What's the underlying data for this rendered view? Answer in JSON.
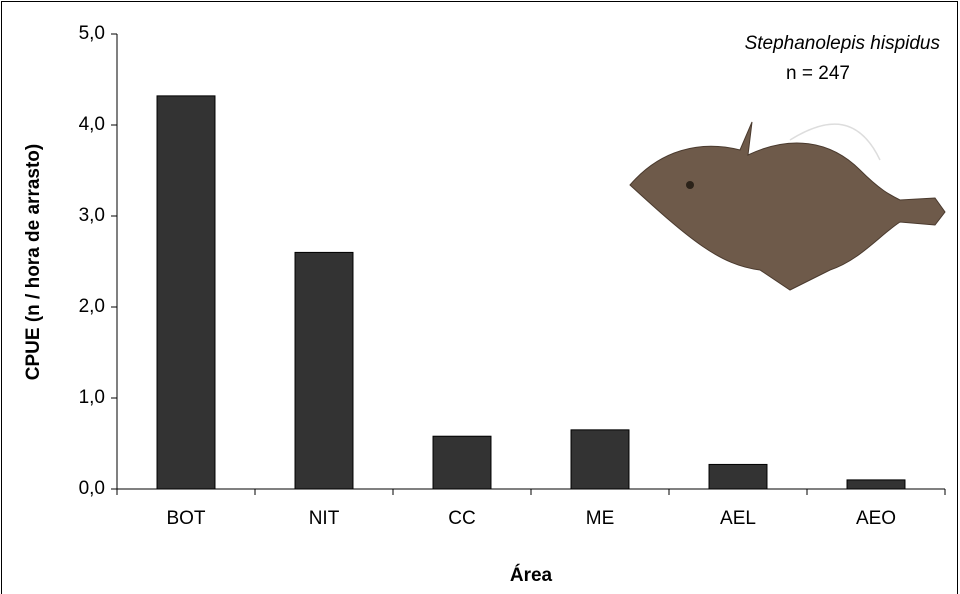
{
  "chart_data": {
    "type": "bar",
    "x_label": "Área",
    "y_label": "CPUE (n / hora de arrasto)",
    "annotations": [
      "Stephanolepis hispidus",
      "n = 247"
    ],
    "categories": [
      "BOT",
      "NIT",
      "CC",
      "ME",
      "AEL",
      "AEO"
    ],
    "values": [
      4.32,
      2.6,
      0.58,
      0.65,
      0.27,
      0.1
    ],
    "color": "#333333",
    "ylim": [
      0,
      5
    ],
    "yticks": [
      {
        "value": 0,
        "label": "0,0"
      },
      {
        "value": 1,
        "label": "1,0"
      },
      {
        "value": 2,
        "label": "2,0"
      },
      {
        "value": 3,
        "label": "3,0"
      },
      {
        "value": 4,
        "label": "4,0"
      },
      {
        "value": 5,
        "label": "5,0"
      }
    ],
    "grid": false
  }
}
